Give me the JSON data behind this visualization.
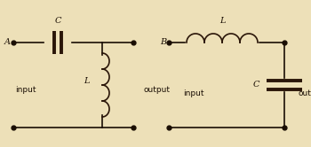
{
  "bg_color": "#ede0b8",
  "line_color": "#1a0e04",
  "text_color": "#1a0e04",
  "dot_color": "#1a0e04",
  "component_color": "#2a1508",
  "fig_width": 3.5,
  "fig_height": 1.66,
  "dpi": 100,
  "circuit1": {
    "label_A": "A",
    "label_input": "input",
    "label_output": "output",
    "label_C": "C",
    "label_L": "L"
  },
  "circuit2": {
    "label_B": "B",
    "label_input": "input",
    "label_output": "output",
    "label_C": "C",
    "label_L": "L"
  }
}
